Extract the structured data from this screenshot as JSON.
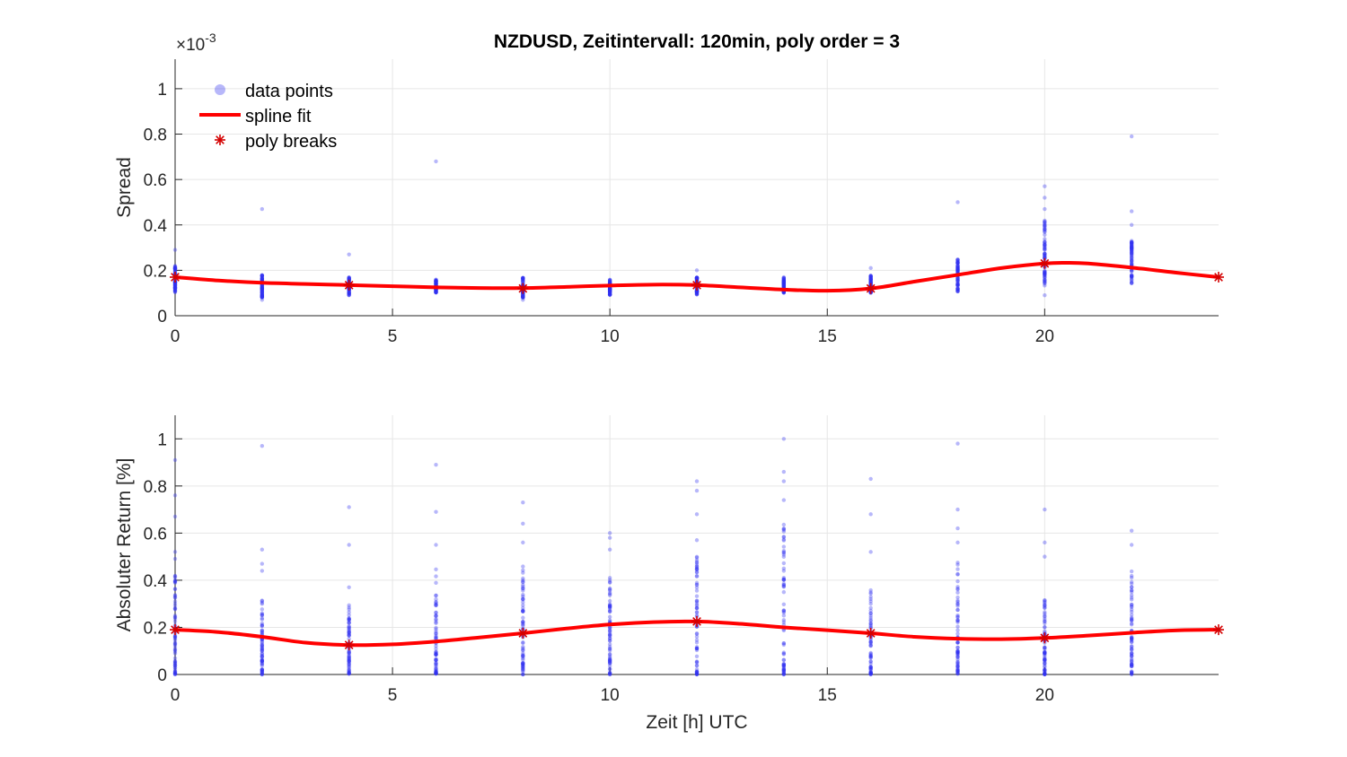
{
  "title": "NZDUSD, Zeitintervall: 120min, poly order = 3",
  "colors": {
    "data_points": "#3030f0",
    "spline_fit": "#ff0000",
    "poly_breaks": "#d40000",
    "grid": "#e6e6e6",
    "axis": "#262626"
  },
  "chart_data": [
    {
      "type": "scatter",
      "name_id": "spread",
      "xlabel": "",
      "ylabel": "Spread",
      "exponent_label": "×10",
      "exponent_power": "-3",
      "xlim": [
        0,
        24
      ],
      "ylim": [
        0,
        1.13
      ],
      "xticks": [
        0,
        5,
        10,
        15,
        20
      ],
      "yticks": [
        0,
        0.2,
        0.4,
        0.6,
        0.8,
        1
      ],
      "ytick_labels": [
        "0",
        "0.2",
        "0.4",
        "0.6",
        "0.8",
        "1"
      ],
      "grid": true,
      "legend": {
        "placement": "top-left",
        "entries": [
          "data points",
          "spline fit",
          "poly breaks"
        ]
      },
      "points": [
        {
          "x": 0,
          "ymin": 0.1,
          "ymax": 0.22,
          "outliers": [
            0.29
          ]
        },
        {
          "x": 2,
          "ymin": 0.08,
          "ymax": 0.18,
          "outliers": [
            0.07,
            0.47
          ]
        },
        {
          "x": 4,
          "ymin": 0.09,
          "ymax": 0.17,
          "outliers": [
            0.27
          ]
        },
        {
          "x": 6,
          "ymin": 0.1,
          "ymax": 0.16,
          "outliers": [
            0.68
          ]
        },
        {
          "x": 8,
          "ymin": 0.08,
          "ymax": 0.17,
          "outliers": [
            0.07
          ]
        },
        {
          "x": 10,
          "ymin": 0.09,
          "ymax": 0.16,
          "outliers": []
        },
        {
          "x": 12,
          "ymin": 0.09,
          "ymax": 0.17,
          "outliers": [
            0.2
          ]
        },
        {
          "x": 14,
          "ymin": 0.1,
          "ymax": 0.17,
          "outliers": []
        },
        {
          "x": 16,
          "ymin": 0.1,
          "ymax": 0.18,
          "outliers": [
            0.21
          ]
        },
        {
          "x": 18,
          "ymin": 0.1,
          "ymax": 0.25,
          "outliers": [
            0.5
          ]
        },
        {
          "x": 20,
          "ymin": 0.13,
          "ymax": 0.42,
          "outliers": [
            0.09,
            0.47,
            0.52,
            0.57
          ]
        },
        {
          "x": 22,
          "ymin": 0.14,
          "ymax": 0.33,
          "outliers": [
            0.4,
            0.46,
            0.79
          ]
        }
      ],
      "breaks": [
        {
          "x": 0,
          "y": 0.17
        },
        {
          "x": 4,
          "y": 0.135
        },
        {
          "x": 8,
          "y": 0.12
        },
        {
          "x": 12,
          "y": 0.135
        },
        {
          "x": 16,
          "y": 0.12
        },
        {
          "x": 20,
          "y": 0.23
        },
        {
          "x": 24,
          "y": 0.17
        }
      ],
      "spline": {
        "x": [
          0,
          1,
          2,
          3,
          4,
          5,
          6,
          7,
          8,
          9,
          10,
          11,
          12,
          13,
          14,
          15,
          16,
          17,
          18,
          19,
          20,
          20.5,
          21,
          22,
          23,
          24
        ],
        "y": [
          0.17,
          0.155,
          0.145,
          0.14,
          0.135,
          0.13,
          0.125,
          0.122,
          0.122,
          0.127,
          0.133,
          0.137,
          0.135,
          0.125,
          0.115,
          0.11,
          0.12,
          0.15,
          0.18,
          0.21,
          0.23,
          0.233,
          0.23,
          0.212,
          0.19,
          0.17
        ]
      }
    },
    {
      "type": "scatter",
      "name_id": "return",
      "xlabel": "Zeit [h] UTC",
      "ylabel": "Absoluter Return [%]",
      "xlim": [
        0,
        24
      ],
      "ylim": [
        0,
        1.1
      ],
      "xticks": [
        0,
        5,
        10,
        15,
        20
      ],
      "yticks": [
        0,
        0.2,
        0.4,
        0.6,
        0.8,
        1
      ],
      "ytick_labels": [
        "0",
        "0.2",
        "0.4",
        "0.6",
        "0.8",
        "1"
      ],
      "grid": true,
      "points": [
        {
          "x": 0,
          "ymin": 0,
          "ymax": 0.55,
          "outliers": [
            0.67,
            0.76,
            0.91
          ]
        },
        {
          "x": 2,
          "ymin": 0,
          "ymax": 0.34,
          "outliers": [
            0.44,
            0.47,
            0.53,
            0.97
          ]
        },
        {
          "x": 4,
          "ymin": 0,
          "ymax": 0.3,
          "outliers": [
            0.37,
            0.55,
            0.71
          ]
        },
        {
          "x": 6,
          "ymin": 0,
          "ymax": 0.45,
          "outliers": [
            0.55,
            0.69,
            0.89
          ]
        },
        {
          "x": 8,
          "ymin": 0,
          "ymax": 0.48,
          "outliers": [
            0.56,
            0.64,
            0.73
          ]
        },
        {
          "x": 10,
          "ymin": 0,
          "ymax": 0.44,
          "outliers": [
            0.53,
            0.58,
            0.6
          ]
        },
        {
          "x": 12,
          "ymin": 0,
          "ymax": 0.5,
          "outliers": [
            0.57,
            0.68,
            0.78,
            0.82
          ]
        },
        {
          "x": 14,
          "ymin": 0,
          "ymax": 0.66,
          "outliers": [
            0.74,
            0.82,
            0.86,
            1.0
          ]
        },
        {
          "x": 16,
          "ymin": 0,
          "ymax": 0.36,
          "outliers": [
            0.52,
            0.68,
            0.83
          ]
        },
        {
          "x": 18,
          "ymin": 0,
          "ymax": 0.48,
          "outliers": [
            0.56,
            0.62,
            0.7,
            0.98
          ]
        },
        {
          "x": 20,
          "ymin": 0,
          "ymax": 0.32,
          "outliers": [
            0.5,
            0.56,
            0.7
          ]
        },
        {
          "x": 22,
          "ymin": 0,
          "ymax": 0.44,
          "outliers": [
            0.55,
            0.61
          ]
        }
      ],
      "breaks": [
        {
          "x": 0,
          "y": 0.19
        },
        {
          "x": 4,
          "y": 0.125
        },
        {
          "x": 8,
          "y": 0.175
        },
        {
          "x": 12,
          "y": 0.225
        },
        {
          "x": 16,
          "y": 0.175
        },
        {
          "x": 20,
          "y": 0.155
        },
        {
          "x": 24,
          "y": 0.19
        }
      ],
      "spline": {
        "x": [
          0,
          1,
          2,
          3,
          4,
          5,
          6,
          7,
          8,
          9,
          10,
          11,
          12,
          13,
          14,
          15,
          16,
          17,
          18,
          19,
          20,
          21,
          22,
          23,
          24
        ],
        "y": [
          0.19,
          0.18,
          0.16,
          0.135,
          0.125,
          0.128,
          0.14,
          0.157,
          0.175,
          0.195,
          0.212,
          0.222,
          0.225,
          0.215,
          0.2,
          0.188,
          0.175,
          0.16,
          0.152,
          0.15,
          0.155,
          0.165,
          0.177,
          0.187,
          0.19
        ]
      }
    }
  ]
}
